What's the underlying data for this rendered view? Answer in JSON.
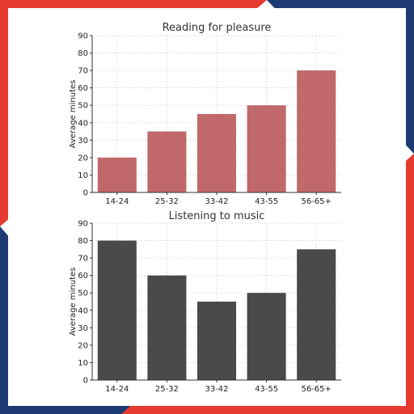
{
  "colors": {
    "frame_red": "#e53a2e",
    "frame_blue": "#1e3a73",
    "panel_bg": "#ffffff",
    "grid": "#d9d9d9",
    "axis": "#333333"
  },
  "chart_data": [
    {
      "type": "bar",
      "title": "Reading for pleasure",
      "xlabel": "",
      "ylabel": "Average minutes",
      "categories": [
        "14-24",
        "25-32",
        "33-42",
        "43-55",
        "56-65+"
      ],
      "values": [
        20,
        35,
        45,
        50,
        70
      ],
      "ylim": [
        0,
        90
      ],
      "yticks": [
        0,
        10,
        20,
        30,
        40,
        50,
        60,
        70,
        80,
        90
      ],
      "grid": true,
      "bar_color": "#c0686a"
    },
    {
      "type": "bar",
      "title": "Listening to music",
      "xlabel": "",
      "ylabel": "Average minutes",
      "categories": [
        "14-24",
        "25-32",
        "33-42",
        "43-55",
        "56-65+"
      ],
      "values": [
        80,
        60,
        45,
        50,
        75
      ],
      "ylim": [
        0,
        90
      ],
      "yticks": [
        0,
        10,
        20,
        30,
        40,
        50,
        60,
        70,
        80,
        90
      ],
      "grid": true,
      "bar_color": "#4a4a4a"
    }
  ]
}
